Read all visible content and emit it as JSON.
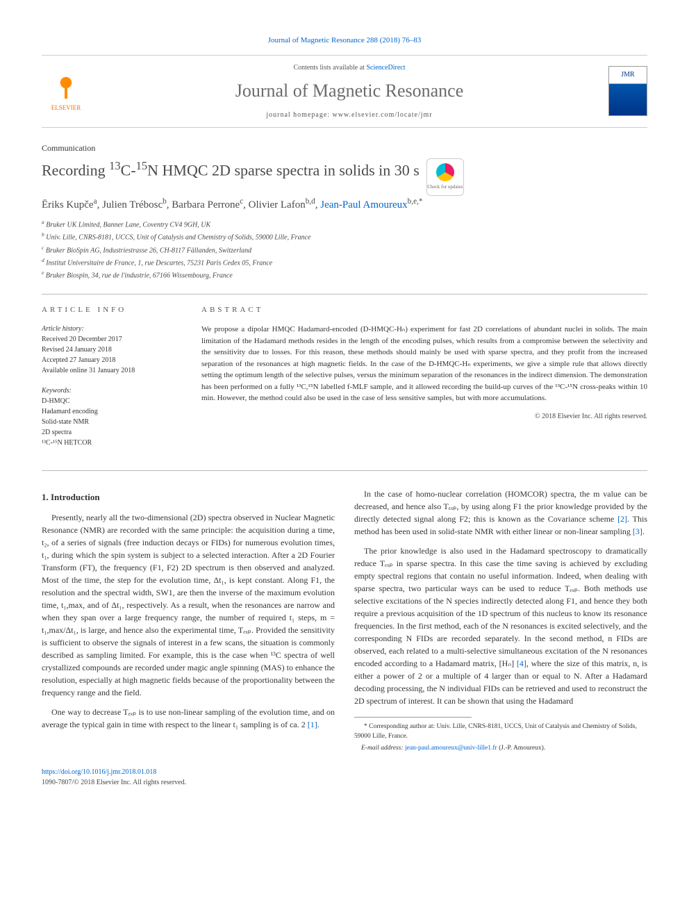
{
  "header": {
    "citation": "Journal of Magnetic Resonance 288 (2018) 76–83",
    "contents_prefix": "Contents lists available at ",
    "contents_link": "ScienceDirect",
    "journal_title": "Journal of Magnetic Resonance",
    "homepage_label": "journal homepage: www.elsevier.com/locate/jmr",
    "publisher": "ELSEVIER",
    "cover_label": "JMR"
  },
  "article": {
    "type": "Communication",
    "title_html": "Recording <sup>13</sup>C-<sup>15</sup>N HMQC 2D sparse spectra in solids in 30 s",
    "crossmark_label": "Check for updates"
  },
  "authors": [
    {
      "name": "Ēriks Kupče",
      "sup": "a"
    },
    {
      "name": "Julien Trébosc",
      "sup": "b"
    },
    {
      "name": "Barbara Perrone",
      "sup": "c"
    },
    {
      "name": "Olivier Lafon",
      "sup": "b,d"
    },
    {
      "name": "Jean-Paul Amoureux",
      "sup": "b,e,*",
      "link": true
    }
  ],
  "affiliations": [
    {
      "sup": "a",
      "text": "Bruker UK Limited, Banner Lane, Coventry CV4 9GH, UK"
    },
    {
      "sup": "b",
      "text": "Univ. Lille, CNRS-8181, UCCS, Unit of Catalysis and Chemistry of Solids, 59000 Lille, France"
    },
    {
      "sup": "c",
      "text": "Bruker BioSpin AG, Industriestrasse 26, CH-8117 Fällanden, Switzerland"
    },
    {
      "sup": "d",
      "text": "Institut Universitaire de France, 1, rue Descartes, 75231 Paris Cedex 05, France"
    },
    {
      "sup": "e",
      "text": "Bruker Biospin, 34, rue de l'industrie, 67166 Wissembourg, France"
    }
  ],
  "info": {
    "heading": "ARTICLE INFO",
    "history_label": "Article history:",
    "history": [
      "Received 20 December 2017",
      "Revised 24 January 2018",
      "Accepted 27 January 2018",
      "Available online 31 January 2018"
    ],
    "keywords_label": "Keywords:",
    "keywords": [
      "D-HMQC",
      "Hadamard encoding",
      "Solid-state NMR",
      "2D spectra",
      "¹³C-¹⁵N HETCOR"
    ]
  },
  "abstract": {
    "heading": "ABSTRACT",
    "text": "We propose a dipolar HMQC Hadamard-encoded (D-HMQC-Hₙ) experiment for fast 2D correlations of abundant nuclei in solids. The main limitation of the Hadamard methods resides in the length of the encoding pulses, which results from a compromise between the selectivity and the sensitivity due to losses. For this reason, these methods should mainly be used with sparse spectra, and they profit from the increased separation of the resonances at high magnetic fields. In the case of the D-HMQC-Hₙ experiments, we give a simple rule that allows directly setting the optimum length of the selective pulses, versus the minimum separation of the resonances in the indirect dimension. The demonstration has been performed on a fully ¹³C,¹⁵N labelled f-MLF sample, and it allowed recording the build-up curves of the ¹³C-¹⁵N cross-peaks within 10 min. However, the method could also be used in the case of less sensitive samples, but with more accumulations.",
    "copyright": "© 2018 Elsevier Inc. All rights reserved."
  },
  "body": {
    "section_heading": "1. Introduction",
    "paragraphs": [
      "Presently, nearly all the two-dimensional (2D) spectra observed in Nuclear Magnetic Resonance (NMR) are recorded with the same principle: the acquisition during a time, t₂, of a series of signals (free induction decays or FIDs) for numerous evolution times, t₁, during which the spin system is subject to a selected interaction. After a 2D Fourier Transform (FT), the frequency (F1, F2) 2D spectrum is then observed and analyzed. Most of the time, the step for the evolution time, Δt₁, is kept constant. Along F1, the resolution and the spectral width, SW1, are then the inverse of the maximum evolution time, t₁,max, and of Δt₁, respectively. As a result, when the resonances are narrow and when they span over a large frequency range, the number of required t₁ steps, m = t₁,max/Δt₁, is large, and hence also the experimental time, Tₑₓₚ. Provided the sensitivity is sufficient to observe the signals of interest in a few scans, the situation is commonly described as sampling limited. For example, this is the case when ¹³C spectra of well crystallized compounds are recorded under magic angle spinning (MAS) to enhance the resolution, especially at high magnetic fields because of the proportionality between the frequency range and the field.",
      "One way to decrease Tₑₓₚ is to use non-linear sampling of the evolution time, and on average the typical gain in time with respect to the linear t₁ sampling is of ca. 2 [1].",
      "In the case of homo-nuclear correlation (HOMCOR) spectra, the m value can be decreased, and hence also Tₑₓₚ, by using along F1 the prior knowledge provided by the directly detected signal along F2; this is known as the Covariance scheme [2]. This method has been used in solid-state NMR with either linear or non-linear sampling [3].",
      "The prior knowledge is also used in the Hadamard spectroscopy to dramatically reduce Tₑₓₚ in sparse spectra. In this case the time saving is achieved by excluding empty spectral regions that contain no useful information. Indeed, when dealing with sparse spectra, two particular ways can be used to reduce Tₑₓₚ. Both methods use selective excitations of the N species indirectly detected along F1, and hence they both require a previous acquisition of the 1D spectrum of this nucleus to know its resonance frequencies. In the first method, each of the N resonances is excited selectively, and the corresponding N FIDs are recorded separately. In the second method, n FIDs are observed, each related to a multi-selective simultaneous excitation of the N resonances encoded according to a Hadamard matrix, [Hₙ] [4], where the size of this matrix, n, is either a power of 2 or a multiple of 4 larger than or equal to N. After a Hadamard decoding processing, the N individual FIDs can be retrieved and used to reconstruct the 2D spectrum of interest. It can be shown that using the Hadamard"
    ],
    "refs": {
      "r1": "[1]",
      "r2": "[2]",
      "r3": "[3]",
      "r4": "[4]"
    }
  },
  "footnotes": {
    "corr": "* Corresponding author at: Univ. Lille, CNRS-8181, UCCS, Unit of Catalysis and Chemistry of Solids, 59000 Lille, France.",
    "email_label": "E-mail address: ",
    "email": "jean-paul.amoureux@univ-lille1.fr",
    "email_who": " (J.-P. Amoureux)."
  },
  "footer": {
    "doi": "https://doi.org/10.1016/j.jmr.2018.01.018",
    "issn_line": "1090-7807/© 2018 Elsevier Inc. All rights reserved."
  },
  "colors": {
    "link": "#0066cc",
    "accent": "#ff6c00",
    "heading_gray": "#6b6b6b",
    "rule": "#bbbbbb"
  }
}
